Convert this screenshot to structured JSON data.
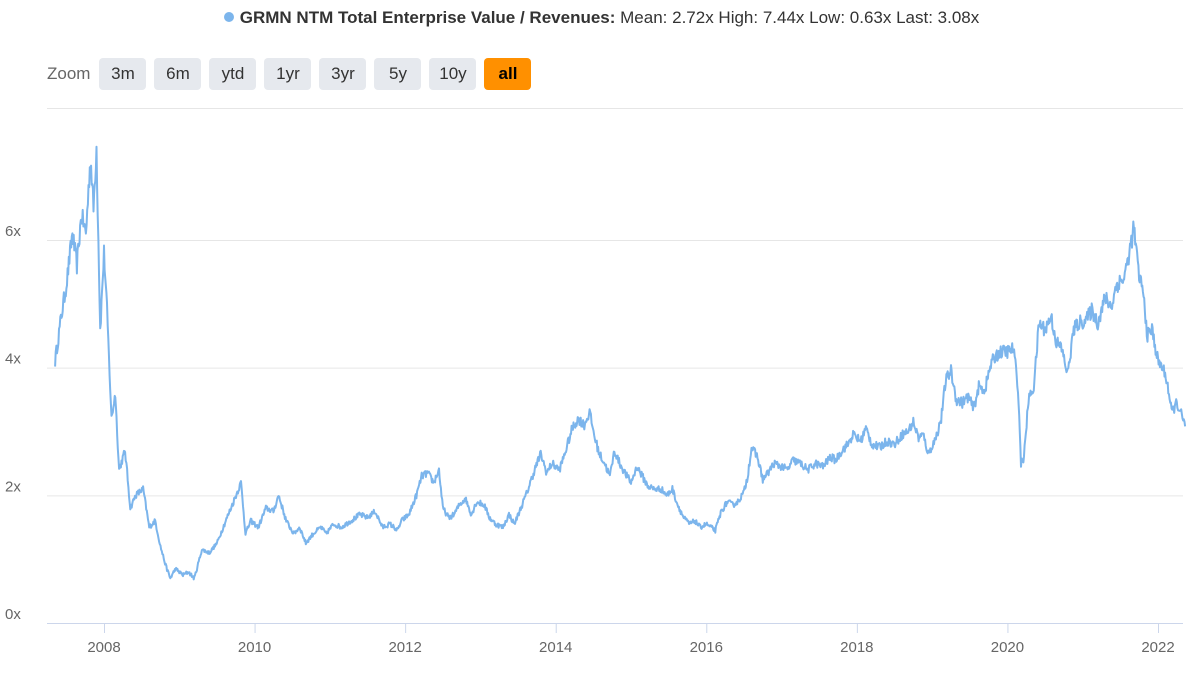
{
  "legend": {
    "series_name": "GRMN NTM Total Enterprise Value / Revenues:",
    "stats": "Mean: 2.72x High: 7.44x Low: 0.63x Last: 3.08x"
  },
  "zoom": {
    "label": "Zoom",
    "buttons": [
      "3m",
      "6m",
      "ytd",
      "1yr",
      "3yr",
      "5y",
      "10y",
      "all"
    ],
    "active": "all"
  },
  "colors": {
    "series": "#7cb5ec",
    "active_button": "#ff9000",
    "button": "#e6e9ee",
    "grid": "#e6e6e6"
  },
  "chart_data": {
    "type": "line",
    "series": [
      {
        "name": "GRMN NTM Total Enterprise Value / Revenues",
        "points": [
          [
            2007.35,
            4.1
          ],
          [
            2007.42,
            4.7
          ],
          [
            2007.5,
            5.3
          ],
          [
            2007.58,
            6.1
          ],
          [
            2007.64,
            5.6
          ],
          [
            2007.7,
            6.4
          ],
          [
            2007.76,
            6.1
          ],
          [
            2007.82,
            7.3
          ],
          [
            2007.86,
            6.5
          ],
          [
            2007.9,
            7.44
          ],
          [
            2007.95,
            4.6
          ],
          [
            2008.0,
            5.8
          ],
          [
            2008.04,
            4.9
          ],
          [
            2008.1,
            3.2
          ],
          [
            2008.15,
            3.6
          ],
          [
            2008.2,
            2.4
          ],
          [
            2008.28,
            2.7
          ],
          [
            2008.35,
            1.8
          ],
          [
            2008.42,
            2.0
          ],
          [
            2008.52,
            2.1
          ],
          [
            2008.6,
            1.5
          ],
          [
            2008.68,
            1.6
          ],
          [
            2008.75,
            1.2
          ],
          [
            2008.82,
            0.9
          ],
          [
            2008.88,
            0.7
          ],
          [
            2008.95,
            0.85
          ],
          [
            2009.05,
            0.75
          ],
          [
            2009.12,
            0.8
          ],
          [
            2009.2,
            0.7
          ],
          [
            2009.3,
            1.15
          ],
          [
            2009.4,
            1.1
          ],
          [
            2009.5,
            1.25
          ],
          [
            2009.6,
            1.55
          ],
          [
            2009.72,
            1.9
          ],
          [
            2009.82,
            2.2
          ],
          [
            2009.88,
            1.4
          ],
          [
            2009.95,
            1.6
          ],
          [
            2010.05,
            1.5
          ],
          [
            2010.15,
            1.8
          ],
          [
            2010.25,
            1.75
          ],
          [
            2010.32,
            2.0
          ],
          [
            2010.42,
            1.6
          ],
          [
            2010.52,
            1.4
          ],
          [
            2010.6,
            1.5
          ],
          [
            2010.68,
            1.25
          ],
          [
            2010.78,
            1.4
          ],
          [
            2010.88,
            1.5
          ],
          [
            2010.95,
            1.4
          ],
          [
            2011.05,
            1.55
          ],
          [
            2011.15,
            1.5
          ],
          [
            2011.28,
            1.6
          ],
          [
            2011.4,
            1.7
          ],
          [
            2011.5,
            1.65
          ],
          [
            2011.6,
            1.75
          ],
          [
            2011.7,
            1.5
          ],
          [
            2011.8,
            1.55
          ],
          [
            2011.9,
            1.45
          ],
          [
            2011.95,
            1.6
          ],
          [
            2012.05,
            1.7
          ],
          [
            2012.15,
            2.0
          ],
          [
            2012.22,
            2.3
          ],
          [
            2012.3,
            2.35
          ],
          [
            2012.38,
            2.2
          ],
          [
            2012.45,
            2.4
          ],
          [
            2012.5,
            1.8
          ],
          [
            2012.58,
            1.65
          ],
          [
            2012.65,
            1.7
          ],
          [
            2012.72,
            1.85
          ],
          [
            2012.8,
            1.95
          ],
          [
            2012.88,
            1.7
          ],
          [
            2012.95,
            1.9
          ],
          [
            2013.05,
            1.85
          ],
          [
            2013.12,
            1.65
          ],
          [
            2013.2,
            1.55
          ],
          [
            2013.3,
            1.5
          ],
          [
            2013.38,
            1.7
          ],
          [
            2013.45,
            1.55
          ],
          [
            2013.52,
            1.75
          ],
          [
            2013.62,
            2.05
          ],
          [
            2013.72,
            2.4
          ],
          [
            2013.8,
            2.65
          ],
          [
            2013.88,
            2.35
          ],
          [
            2013.95,
            2.5
          ],
          [
            2014.05,
            2.4
          ],
          [
            2014.12,
            2.65
          ],
          [
            2014.22,
            3.05
          ],
          [
            2014.3,
            3.2
          ],
          [
            2014.38,
            3.1
          ],
          [
            2014.45,
            3.3
          ],
          [
            2014.52,
            2.9
          ],
          [
            2014.58,
            2.65
          ],
          [
            2014.65,
            2.5
          ],
          [
            2014.72,
            2.3
          ],
          [
            2014.78,
            2.7
          ],
          [
            2014.85,
            2.5
          ],
          [
            2014.92,
            2.35
          ],
          [
            2015.0,
            2.2
          ],
          [
            2015.08,
            2.45
          ],
          [
            2015.15,
            2.3
          ],
          [
            2015.22,
            2.15
          ],
          [
            2015.3,
            2.1
          ],
          [
            2015.4,
            2.1
          ],
          [
            2015.48,
            2.0
          ],
          [
            2015.55,
            2.1
          ],
          [
            2015.62,
            1.85
          ],
          [
            2015.7,
            1.65
          ],
          [
            2015.78,
            1.55
          ],
          [
            2015.85,
            1.6
          ],
          [
            2015.92,
            1.5
          ],
          [
            2016.0,
            1.55
          ],
          [
            2016.06,
            1.5
          ],
          [
            2016.12,
            1.45
          ],
          [
            2016.2,
            1.75
          ],
          [
            2016.28,
            1.9
          ],
          [
            2016.35,
            1.85
          ],
          [
            2016.42,
            1.9
          ],
          [
            2016.5,
            2.05
          ],
          [
            2016.55,
            2.3
          ],
          [
            2016.6,
            2.75
          ],
          [
            2016.68,
            2.6
          ],
          [
            2016.75,
            2.25
          ],
          [
            2016.82,
            2.35
          ],
          [
            2016.9,
            2.5
          ],
          [
            2017.0,
            2.45
          ],
          [
            2017.08,
            2.4
          ],
          [
            2017.15,
            2.55
          ],
          [
            2017.25,
            2.5
          ],
          [
            2017.35,
            2.4
          ],
          [
            2017.45,
            2.5
          ],
          [
            2017.55,
            2.45
          ],
          [
            2017.65,
            2.6
          ],
          [
            2017.72,
            2.55
          ],
          [
            2017.8,
            2.7
          ],
          [
            2017.88,
            2.8
          ],
          [
            2017.95,
            2.95
          ],
          [
            2018.05,
            2.85
          ],
          [
            2018.12,
            3.05
          ],
          [
            2018.2,
            2.8
          ],
          [
            2018.3,
            2.75
          ],
          [
            2018.4,
            2.85
          ],
          [
            2018.5,
            2.8
          ],
          [
            2018.6,
            2.95
          ],
          [
            2018.68,
            3.0
          ],
          [
            2018.75,
            3.15
          ],
          [
            2018.82,
            2.9
          ],
          [
            2018.88,
            2.95
          ],
          [
            2018.95,
            2.65
          ],
          [
            2019.05,
            2.9
          ],
          [
            2019.12,
            3.2
          ],
          [
            2019.18,
            3.8
          ],
          [
            2019.25,
            3.95
          ],
          [
            2019.32,
            3.5
          ],
          [
            2019.4,
            3.45
          ],
          [
            2019.48,
            3.55
          ],
          [
            2019.55,
            3.35
          ],
          [
            2019.62,
            3.7
          ],
          [
            2019.7,
            3.65
          ],
          [
            2019.78,
            4.05
          ],
          [
            2019.85,
            4.2
          ],
          [
            2019.92,
            4.25
          ],
          [
            2020.0,
            4.25
          ],
          [
            2020.08,
            4.3
          ],
          [
            2020.14,
            3.7
          ],
          [
            2020.18,
            2.5
          ],
          [
            2020.22,
            2.6
          ],
          [
            2020.28,
            3.5
          ],
          [
            2020.35,
            3.7
          ],
          [
            2020.42,
            4.7
          ],
          [
            2020.5,
            4.6
          ],
          [
            2020.58,
            4.8
          ],
          [
            2020.65,
            4.4
          ],
          [
            2020.72,
            4.3
          ],
          [
            2020.8,
            3.9
          ],
          [
            2020.88,
            4.6
          ],
          [
            2020.95,
            4.7
          ],
          [
            2021.05,
            4.75
          ],
          [
            2021.12,
            4.9
          ],
          [
            2021.2,
            4.7
          ],
          [
            2021.3,
            5.1
          ],
          [
            2021.38,
            4.95
          ],
          [
            2021.45,
            5.3
          ],
          [
            2021.55,
            5.4
          ],
          [
            2021.62,
            5.8
          ],
          [
            2021.68,
            6.2
          ],
          [
            2021.74,
            5.5
          ],
          [
            2021.8,
            5.2
          ],
          [
            2021.86,
            4.5
          ],
          [
            2021.92,
            4.6
          ],
          [
            2022.0,
            4.1
          ],
          [
            2022.06,
            4.0
          ],
          [
            2022.12,
            3.8
          ],
          [
            2022.18,
            3.3
          ],
          [
            2022.25,
            3.45
          ],
          [
            2022.3,
            3.3
          ],
          [
            2022.36,
            3.08
          ]
        ]
      }
    ],
    "x_ticks": [
      "2008",
      "2010",
      "2012",
      "2014",
      "2016",
      "2018",
      "2020",
      "2022"
    ],
    "y_ticks": [
      "0x",
      "2x",
      "4x",
      "6x"
    ],
    "xlim": [
      2007.35,
      2022.36
    ],
    "ylim": [
      0,
      7.5
    ],
    "grid": "horizontal",
    "legend_position": "top-center"
  }
}
